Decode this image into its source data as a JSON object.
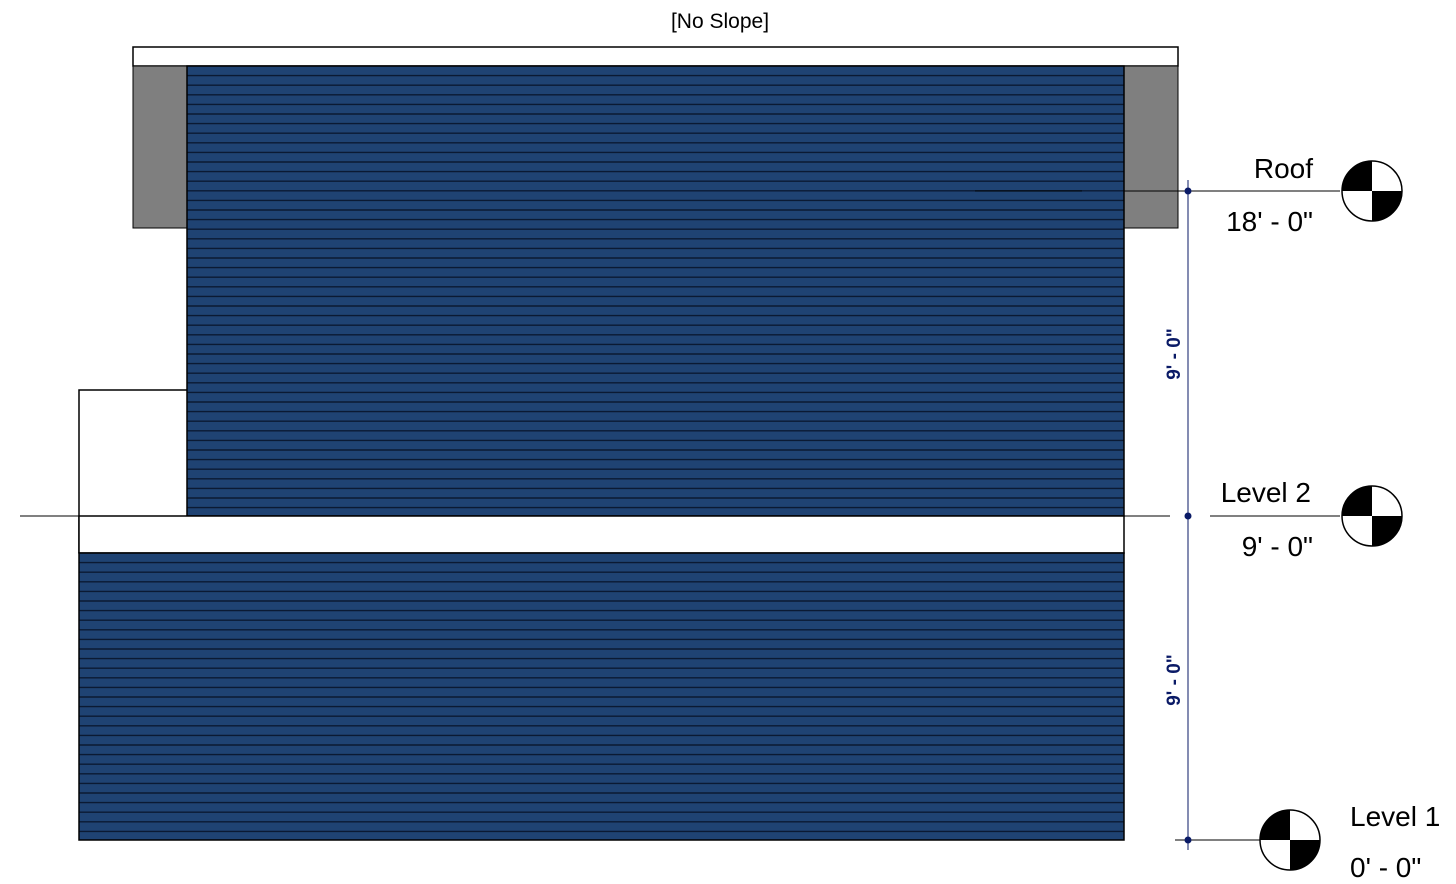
{
  "drawing": {
    "roof_note": "[No Slope]",
    "siding_color": "#1f4373",
    "siding_line_color": "#0b1a33",
    "fascia_color": "#7f7f7f",
    "dim_color": "#0a1a66"
  },
  "levels": [
    {
      "id": "roof",
      "name": "Roof",
      "elevation": "18' - 0\""
    },
    {
      "id": "level2",
      "name": "Level 2",
      "elevation": "9' - 0\""
    },
    {
      "id": "level1",
      "name": "Level 1",
      "elevation": "0' - 0\""
    }
  ],
  "dimensions": {
    "upper": "9' - 0\"",
    "lower": "9' - 0\""
  }
}
